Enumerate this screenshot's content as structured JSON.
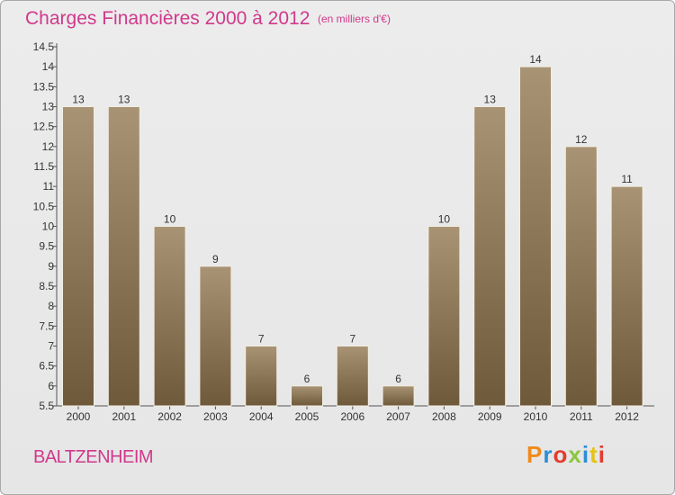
{
  "header": {
    "title": "Charges Financières 2000 à 2012",
    "subtitle": "(en milliers d'€)"
  },
  "footer": {
    "commune": "BALTZENHEIM",
    "logo_text": "Proxiti"
  },
  "colors": {
    "title": "#d0398b",
    "bar_light": "#a89474",
    "bar_dark": "#6e5a3a",
    "background": "#e8e8e8"
  },
  "chart_data": {
    "type": "bar",
    "title": "Charges Financières 2000 à 2012",
    "subtitle": "(en milliers d'€)",
    "categories": [
      "2000",
      "2001",
      "2002",
      "2003",
      "2004",
      "2005",
      "2006",
      "2007",
      "2008",
      "2009",
      "2010",
      "2011",
      "2012"
    ],
    "values": [
      13,
      13,
      10,
      9,
      7,
      6,
      7,
      6,
      10,
      13,
      14,
      12,
      11
    ],
    "ylim": [
      5.5,
      14.5
    ],
    "yticks": [
      5.5,
      6,
      6.5,
      7,
      7.5,
      8,
      8.5,
      9,
      9.5,
      10,
      10.5,
      11,
      11.5,
      12,
      12.5,
      13,
      13.5,
      14,
      14.5
    ],
    "ytick_labels": [
      "5.5",
      "6",
      "6.5",
      "7",
      "7.5",
      "8",
      "8.5",
      "9",
      "9.5",
      "10",
      "10.5",
      "11",
      "11.5",
      "12",
      "12.5",
      "13",
      "13.5",
      "14",
      "14.5"
    ],
    "grid": false,
    "legend": "none"
  }
}
